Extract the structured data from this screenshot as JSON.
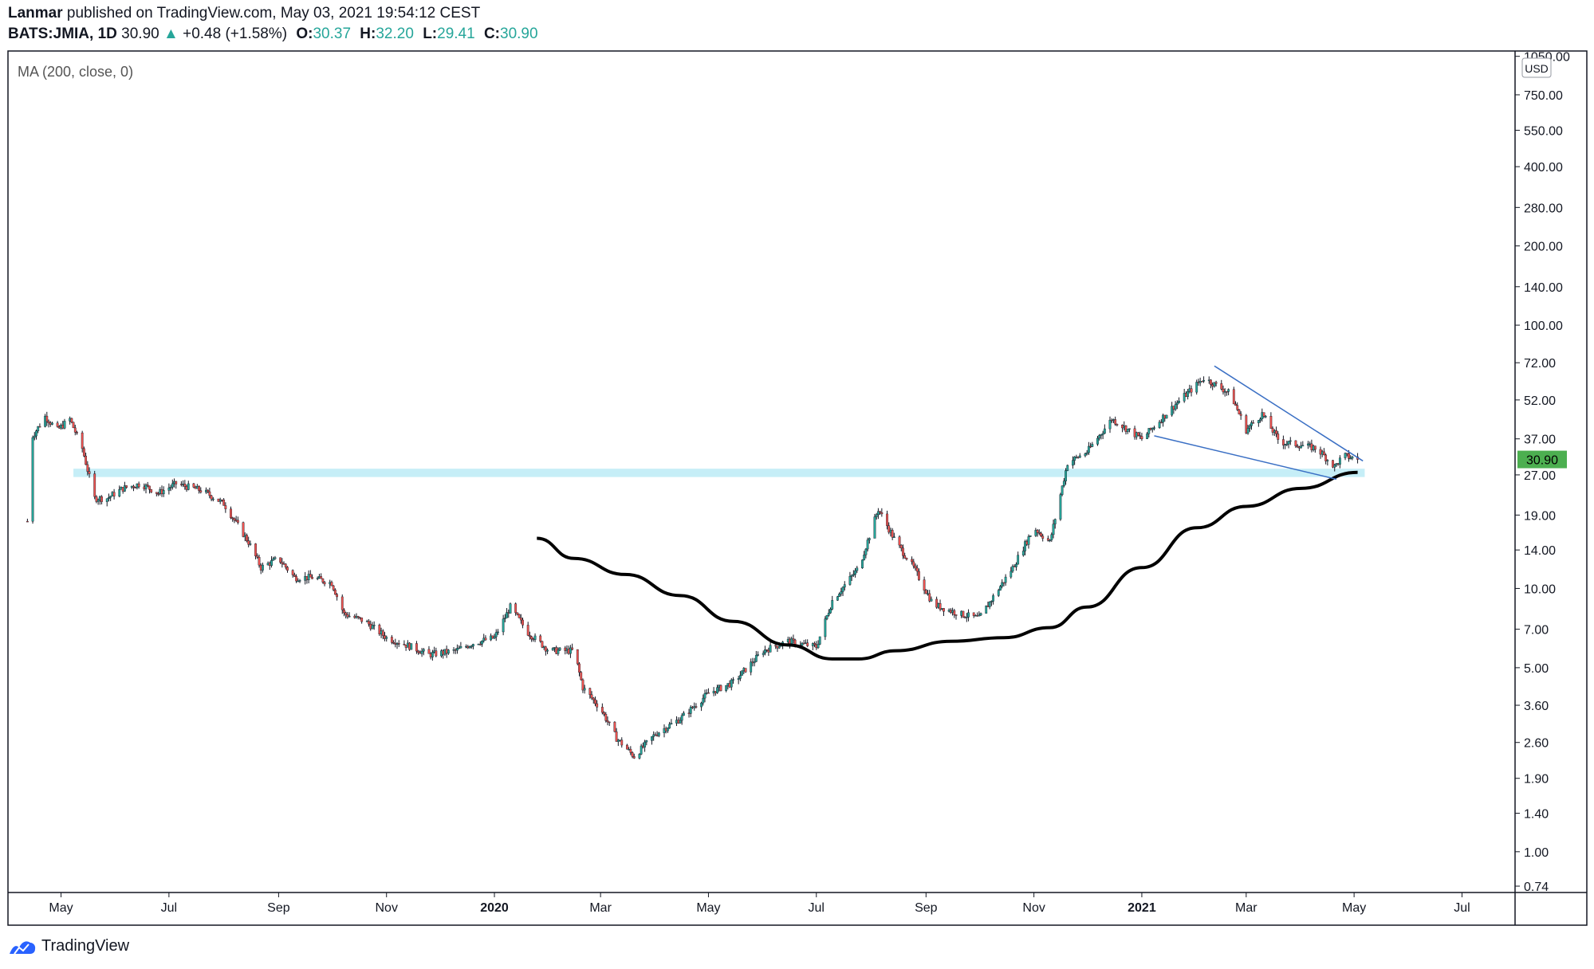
{
  "header": {
    "author": "Lanmar",
    "published_text": "published on TradingView.com, May 03, 2021 19:54:12 CEST",
    "symbol": "BATS:JMIA, 1D",
    "last": "30.90",
    "change": "+0.48 (+1.58%)",
    "open_label": "O:",
    "open": "30.37",
    "high_label": "H:",
    "high": "32.20",
    "low_label": "L:",
    "low": "29.41",
    "close_label": "C:",
    "close": "30.90"
  },
  "indicator_label": "MA (200, close, 0)",
  "currency": "USD",
  "price_badge": "30.90",
  "brand": "TradingView",
  "colors": {
    "up": "#26a69a",
    "down": "#ef5350",
    "candle": "#131722",
    "ma": "#000000",
    "support_band": "#c6eef7",
    "wedge": "#3a6fc4",
    "badge": "#4caf50"
  },
  "chart_data": {
    "type": "candlestick",
    "scale": "log",
    "ylim": [
      0.7,
      1100
    ],
    "yticks": [
      "1050.00",
      "750.00",
      "550.00",
      "400.00",
      "280.00",
      "200.00",
      "140.00",
      "100.00",
      "72.00",
      "52.00",
      "37.00",
      "27.00",
      "19.00",
      "14.00",
      "10.00",
      "7.00",
      "5.00",
      "3.60",
      "2.60",
      "1.90",
      "1.40",
      "1.00",
      "0.74"
    ],
    "xticks": [
      "May",
      "Jul",
      "Sep",
      "Nov",
      "2020",
      "Mar",
      "May",
      "Jul",
      "Sep",
      "Nov",
      "2021",
      "Mar",
      "May",
      "Jul"
    ],
    "xrange": [
      "2019-04-01",
      "2021-07-31"
    ],
    "tick_dates": [
      "2019-05-01",
      "2019-07-01",
      "2019-09-01",
      "2019-11-01",
      "2020-01-01",
      "2020-03-01",
      "2020-05-01",
      "2020-07-01",
      "2020-09-01",
      "2020-11-01",
      "2021-01-01",
      "2021-03-01",
      "2021-05-01",
      "2021-07-01"
    ],
    "price_path": [
      [
        "2019-04-12",
        18
      ],
      [
        "2019-04-15",
        38
      ],
      [
        "2019-04-22",
        45
      ],
      [
        "2019-04-29",
        40
      ],
      [
        "2019-05-06",
        44
      ],
      [
        "2019-05-13",
        34
      ],
      [
        "2019-05-20",
        22
      ],
      [
        "2019-05-27",
        22
      ],
      [
        "2019-06-05",
        24
      ],
      [
        "2019-06-15",
        25
      ],
      [
        "2019-06-25",
        23
      ],
      [
        "2019-07-05",
        25
      ],
      [
        "2019-07-20",
        23.5
      ],
      [
        "2019-08-01",
        21
      ],
      [
        "2019-08-15",
        15
      ],
      [
        "2019-08-22",
        12
      ],
      [
        "2019-09-01",
        13
      ],
      [
        "2019-09-10",
        11
      ],
      [
        "2019-09-20",
        11
      ],
      [
        "2019-10-01",
        10.5
      ],
      [
        "2019-10-08",
        8
      ],
      [
        "2019-10-20",
        7.5
      ],
      [
        "2019-11-01",
        6.5
      ],
      [
        "2019-11-15",
        6
      ],
      [
        "2019-11-25",
        5.6
      ],
      [
        "2019-12-10",
        5.8
      ],
      [
        "2019-12-20",
        6.2
      ],
      [
        "2020-01-01",
        6.5
      ],
      [
        "2020-01-10",
        8.5
      ],
      [
        "2020-01-20",
        6.8
      ],
      [
        "2020-02-01",
        5.8
      ],
      [
        "2020-02-15",
        5.8
      ],
      [
        "2020-02-20",
        4.2
      ],
      [
        "2020-03-01",
        3.5
      ],
      [
        "2020-03-10",
        2.7
      ],
      [
        "2020-03-20",
        2.3
      ],
      [
        "2020-04-01",
        2.8
      ],
      [
        "2020-04-15",
        3.2
      ],
      [
        "2020-05-01",
        4
      ],
      [
        "2020-05-15",
        4.4
      ],
      [
        "2020-06-01",
        5.8
      ],
      [
        "2020-06-15",
        6.3
      ],
      [
        "2020-07-01",
        6
      ],
      [
        "2020-07-10",
        9
      ],
      [
        "2020-07-25",
        12
      ],
      [
        "2020-08-05",
        20
      ],
      [
        "2020-08-15",
        15
      ],
      [
        "2020-08-25",
        12
      ],
      [
        "2020-09-05",
        8.7
      ],
      [
        "2020-09-20",
        8
      ],
      [
        "2020-10-01",
        7.7
      ],
      [
        "2020-10-20",
        12
      ],
      [
        "2020-11-01",
        17
      ],
      [
        "2020-11-10",
        15
      ],
      [
        "2020-11-20",
        30
      ],
      [
        "2020-12-01",
        33
      ],
      [
        "2020-12-15",
        44
      ],
      [
        "2021-01-01",
        37
      ],
      [
        "2021-01-20",
        50
      ],
      [
        "2021-02-05",
        63
      ],
      [
        "2021-02-20",
        55
      ],
      [
        "2021-03-01",
        40
      ],
      [
        "2021-03-10",
        46
      ],
      [
        "2021-03-20",
        36
      ],
      [
        "2021-04-01",
        35
      ],
      [
        "2021-04-10",
        34
      ],
      [
        "2021-04-20",
        29
      ],
      [
        "2021-04-25",
        32
      ],
      [
        "2021-05-03",
        30.9
      ]
    ],
    "ma200": [
      [
        "2020-01-25",
        15.5
      ],
      [
        "2020-02-15",
        13
      ],
      [
        "2020-03-15",
        11.3
      ],
      [
        "2020-04-15",
        9.4
      ],
      [
        "2020-05-15",
        7.5
      ],
      [
        "2020-06-15",
        6.1
      ],
      [
        "2020-07-10",
        5.4
      ],
      [
        "2020-07-25",
        5.4
      ],
      [
        "2020-08-15",
        5.8
      ],
      [
        "2020-09-15",
        6.3
      ],
      [
        "2020-10-15",
        6.5
      ],
      [
        "2020-11-10",
        7.1
      ],
      [
        "2020-12-01",
        8.5
      ],
      [
        "2021-01-01",
        12
      ],
      [
        "2021-02-01",
        17
      ],
      [
        "2021-03-01",
        20.5
      ],
      [
        "2021-04-01",
        24
      ],
      [
        "2021-05-03",
        27.6
      ]
    ],
    "support_band": [
      26.5,
      28.5
    ],
    "wedge_upper": [
      [
        "2021-02-11",
        70
      ],
      [
        "2021-05-06",
        30.5
      ]
    ],
    "wedge_lower": [
      [
        "2021-01-08",
        38
      ],
      [
        "2021-04-21",
        26
      ]
    ]
  }
}
